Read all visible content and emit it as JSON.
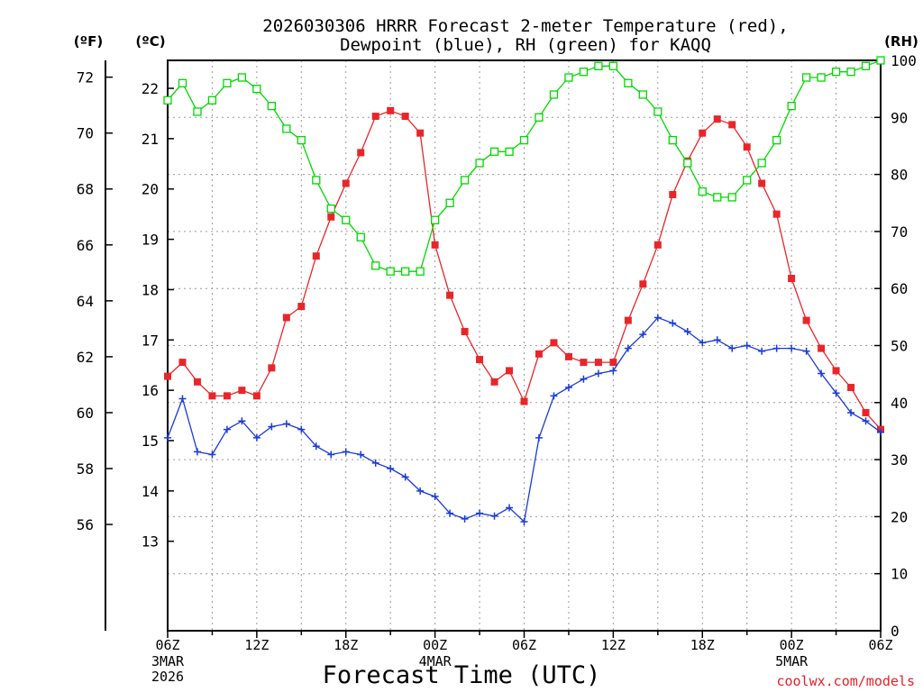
{
  "chart_data": {
    "type": "line",
    "title_line1": "2026030306 HRRR Forecast 2-meter Temperature (red),",
    "title_line2": "Dewpoint (blue), RH (green) for KAQQ",
    "unit_f": "(ºF)",
    "unit_c": "(ºC)",
    "unit_rh": "(RH)",
    "xlabel": "Forecast Time (UTC)",
    "credit": "coolwx.com/models",
    "xlim": [
      0,
      48
    ],
    "ylim_f": [
      52.2,
      72.6
    ],
    "ylim_rh": [
      0,
      100
    ],
    "f_ticks": [
      56,
      58,
      60,
      62,
      64,
      66,
      68,
      70,
      72
    ],
    "c_ticks": [
      13,
      14,
      15,
      16,
      17,
      18,
      19,
      20,
      21,
      22
    ],
    "rh_ticks": [
      0,
      10,
      20,
      30,
      40,
      50,
      60,
      70,
      80,
      90,
      100
    ],
    "x_ticks": [
      {
        "h": 0,
        "label": "06Z"
      },
      {
        "h": 6,
        "label": "12Z"
      },
      {
        "h": 12,
        "label": "18Z"
      },
      {
        "h": 18,
        "label": "00Z"
      },
      {
        "h": 24,
        "label": "06Z"
      },
      {
        "h": 30,
        "label": "12Z"
      },
      {
        "h": 36,
        "label": "18Z"
      },
      {
        "h": 42,
        "label": "00Z"
      },
      {
        "h": 48,
        "label": "06Z"
      }
    ],
    "date_labels": [
      {
        "h": 0,
        "lines": [
          "3MAR",
          "2026"
        ]
      },
      {
        "h": 18,
        "lines": [
          "4MAR"
        ]
      },
      {
        "h": 42,
        "lines": [
          "5MAR"
        ]
      }
    ],
    "series": [
      {
        "name": "Temperature",
        "units": "F",
        "color": "#e8262a",
        "marker": "filled-square",
        "values": [
          61.3,
          61.8,
          61.1,
          60.6,
          60.6,
          60.8,
          60.6,
          61.6,
          63.4,
          63.8,
          65.6,
          67.0,
          68.2,
          69.3,
          70.6,
          70.8,
          70.6,
          70.0,
          66.0,
          64.2,
          62.9,
          61.9,
          61.1,
          61.5,
          60.4,
          62.1,
          62.5,
          62.0,
          61.8,
          61.8,
          61.8,
          63.3,
          64.6,
          66.0,
          67.8,
          69.0,
          70.0,
          70.5,
          70.3,
          69.5,
          68.2,
          67.1,
          64.8,
          63.3,
          62.3,
          61.5,
          60.9,
          60.0,
          59.4
        ]
      },
      {
        "name": "Dewpoint",
        "units": "F",
        "color": "#1a3bd6",
        "marker": "plus",
        "values": [
          59.1,
          60.5,
          58.6,
          58.5,
          59.4,
          59.7,
          59.1,
          59.5,
          59.6,
          59.4,
          58.8,
          58.5,
          58.6,
          58.5,
          58.2,
          58.0,
          57.7,
          57.2,
          57.0,
          56.4,
          56.2,
          56.4,
          56.3,
          56.6,
          56.1,
          59.1,
          60.6,
          60.9,
          61.2,
          61.4,
          61.5,
          62.3,
          62.8,
          63.4,
          63.2,
          62.9,
          62.5,
          62.6,
          62.3,
          62.4,
          62.2,
          62.3,
          62.3,
          62.2,
          61.4,
          60.7,
          60.0,
          59.7,
          59.3
        ]
      },
      {
        "name": "RH",
        "units": "%",
        "color": "#00d800",
        "marker": "open-square",
        "values": [
          93,
          96,
          91,
          93,
          96,
          97,
          95,
          92,
          88,
          86,
          79,
          74,
          72,
          69,
          64,
          63,
          63,
          63,
          72,
          75,
          79,
          82,
          84,
          84,
          86,
          90,
          94,
          97,
          98,
          99,
          99,
          96,
          94,
          91,
          86,
          82,
          77,
          76,
          76,
          79,
          82,
          86,
          92,
          97,
          97,
          98,
          98,
          99,
          100
        ]
      }
    ]
  }
}
